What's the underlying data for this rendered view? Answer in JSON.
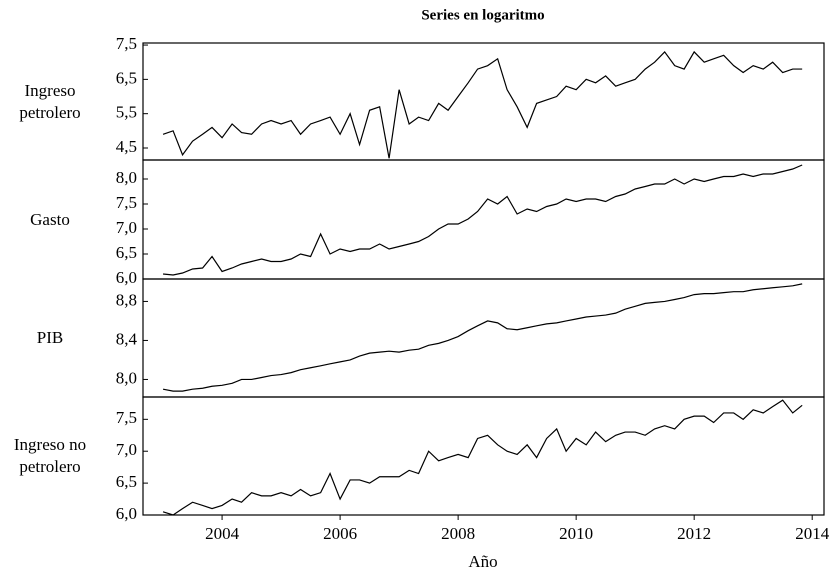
{
  "chart_data": [
    {
      "type": "line",
      "title": "Series en logaritmo",
      "ylabel": "Ingreso petrolero",
      "color": "#000000",
      "x": [
        2003,
        2003.17,
        2003.33,
        2003.5,
        2003.67,
        2003.83,
        2004,
        2004.17,
        2004.33,
        2004.5,
        2004.67,
        2004.83,
        2005,
        2005.17,
        2005.33,
        2005.5,
        2005.67,
        2005.83,
        2006,
        2006.17,
        2006.33,
        2006.5,
        2006.67,
        2006.83,
        2007,
        2007.17,
        2007.33,
        2007.5,
        2007.67,
        2007.83,
        2008,
        2008.17,
        2008.33,
        2008.5,
        2008.67,
        2008.83,
        2009,
        2009.17,
        2009.33,
        2009.5,
        2009.67,
        2009.83,
        2010,
        2010.17,
        2010.33,
        2010.5,
        2010.67,
        2010.83,
        2011,
        2011.17,
        2011.33,
        2011.5,
        2011.67,
        2011.83,
        2012,
        2012.17,
        2012.33,
        2012.5,
        2012.67,
        2012.83,
        2013,
        2013.17,
        2013.33,
        2013.5,
        2013.67,
        2013.83
      ],
      "values": [
        4.9,
        5.0,
        4.3,
        4.7,
        4.9,
        5.1,
        4.8,
        5.2,
        4.95,
        4.9,
        5.2,
        5.3,
        5.2,
        5.3,
        4.9,
        5.2,
        5.3,
        5.4,
        4.9,
        5.5,
        4.6,
        5.6,
        5.7,
        4.2,
        6.2,
        5.2,
        5.4,
        5.3,
        5.8,
        5.6,
        6.0,
        6.4,
        6.8,
        6.9,
        7.1,
        6.2,
        5.7,
        5.1,
        5.8,
        5.9,
        6.0,
        6.3,
        6.2,
        6.5,
        6.4,
        6.6,
        6.3,
        6.4,
        6.5,
        6.8,
        7.0,
        7.3,
        6.9,
        6.8,
        7.3,
        7.0,
        7.1,
        7.2,
        6.9,
        6.7,
        6.9,
        6.8,
        7.0,
        6.7,
        6.8,
        6.8
      ],
      "xlim": [
        2002.66,
        2014.2
      ],
      "ylim": [
        4.15,
        7.56
      ],
      "yticks": [
        {
          "value": 7.5,
          "label": "7,5"
        },
        {
          "value": 6.5,
          "label": "6,5"
        },
        {
          "value": 5.5,
          "label": "5,5"
        },
        {
          "value": 4.5,
          "label": "4,5"
        }
      ]
    },
    {
      "type": "line",
      "ylabel": "Gasto",
      "color": "#000000",
      "x": [
        2003,
        2003.17,
        2003.33,
        2003.5,
        2003.67,
        2003.83,
        2004,
        2004.17,
        2004.33,
        2004.5,
        2004.67,
        2004.83,
        2005,
        2005.17,
        2005.33,
        2005.5,
        2005.67,
        2005.83,
        2006,
        2006.17,
        2006.33,
        2006.5,
        2006.67,
        2006.83,
        2007,
        2007.17,
        2007.33,
        2007.5,
        2007.67,
        2007.83,
        2008,
        2008.17,
        2008.33,
        2008.5,
        2008.67,
        2008.83,
        2009,
        2009.17,
        2009.33,
        2009.5,
        2009.67,
        2009.83,
        2010,
        2010.17,
        2010.33,
        2010.5,
        2010.67,
        2010.83,
        2011,
        2011.17,
        2011.33,
        2011.5,
        2011.67,
        2011.83,
        2012,
        2012.17,
        2012.33,
        2012.5,
        2012.67,
        2012.83,
        2013,
        2013.17,
        2013.33,
        2013.5,
        2013.67,
        2013.83
      ],
      "values": [
        6.1,
        6.08,
        6.12,
        6.2,
        6.22,
        6.45,
        6.15,
        6.22,
        6.3,
        6.35,
        6.4,
        6.35,
        6.35,
        6.4,
        6.5,
        6.45,
        6.9,
        6.5,
        6.6,
        6.55,
        6.6,
        6.6,
        6.7,
        6.6,
        6.65,
        6.7,
        6.75,
        6.85,
        7.0,
        7.1,
        7.1,
        7.2,
        7.35,
        7.6,
        7.5,
        7.65,
        7.3,
        7.4,
        7.35,
        7.45,
        7.5,
        7.6,
        7.55,
        7.6,
        7.6,
        7.55,
        7.65,
        7.7,
        7.8,
        7.85,
        7.9,
        7.9,
        8.0,
        7.9,
        8.0,
        7.95,
        8.0,
        8.05,
        8.05,
        8.1,
        8.05,
        8.1,
        8.1,
        8.15,
        8.2,
        8.28
      ],
      "xlim": [
        2002.66,
        2014.2
      ],
      "ylim": [
        6.0,
        8.38
      ],
      "yticks": [
        {
          "value": 8.0,
          "label": "8,0"
        },
        {
          "value": 7.5,
          "label": "7,5"
        },
        {
          "value": 7.0,
          "label": "7,0"
        },
        {
          "value": 6.5,
          "label": "6,5"
        },
        {
          "value": 6.0,
          "label": "6,0"
        }
      ]
    },
    {
      "type": "line",
      "ylabel": "PIB",
      "color": "#000000",
      "x": [
        2003,
        2003.17,
        2003.33,
        2003.5,
        2003.67,
        2003.83,
        2004,
        2004.17,
        2004.33,
        2004.5,
        2004.67,
        2004.83,
        2005,
        2005.17,
        2005.33,
        2005.5,
        2005.67,
        2005.83,
        2006,
        2006.17,
        2006.33,
        2006.5,
        2006.67,
        2006.83,
        2007,
        2007.17,
        2007.33,
        2007.5,
        2007.67,
        2007.83,
        2008,
        2008.17,
        2008.33,
        2008.5,
        2008.67,
        2008.83,
        2009,
        2009.17,
        2009.33,
        2009.5,
        2009.67,
        2009.83,
        2010,
        2010.17,
        2010.33,
        2010.5,
        2010.67,
        2010.83,
        2011,
        2011.17,
        2011.33,
        2011.5,
        2011.67,
        2011.83,
        2012,
        2012.17,
        2012.33,
        2012.5,
        2012.67,
        2012.83,
        2013,
        2013.17,
        2013.33,
        2013.5,
        2013.67,
        2013.83
      ],
      "values": [
        7.9,
        7.88,
        7.88,
        7.9,
        7.91,
        7.93,
        7.94,
        7.96,
        8.0,
        8.0,
        8.02,
        8.04,
        8.05,
        8.07,
        8.1,
        8.12,
        8.14,
        8.16,
        8.18,
        8.2,
        8.24,
        8.27,
        8.28,
        8.29,
        8.28,
        8.3,
        8.31,
        8.35,
        8.37,
        8.4,
        8.44,
        8.5,
        8.55,
        8.6,
        8.58,
        8.52,
        8.51,
        8.53,
        8.55,
        8.57,
        8.58,
        8.6,
        8.62,
        8.64,
        8.65,
        8.66,
        8.68,
        8.72,
        8.75,
        8.78,
        8.79,
        8.8,
        8.82,
        8.84,
        8.87,
        8.88,
        8.88,
        8.89,
        8.9,
        8.9,
        8.92,
        8.93,
        8.94,
        8.95,
        8.96,
        8.98
      ],
      "xlim": [
        2002.66,
        2014.2
      ],
      "ylim": [
        7.82,
        9.03
      ],
      "yticks": [
        {
          "value": 8.8,
          "label": "8,8"
        },
        {
          "value": 8.4,
          "label": "8,4"
        },
        {
          "value": 8.0,
          "label": "8,0"
        }
      ]
    },
    {
      "type": "line",
      "ylabel": "Ingreso no petrolero",
      "xlabel": "Año",
      "color": "#000000",
      "x": [
        2003,
        2003.17,
        2003.33,
        2003.5,
        2003.67,
        2003.83,
        2004,
        2004.17,
        2004.33,
        2004.5,
        2004.67,
        2004.83,
        2005,
        2005.17,
        2005.33,
        2005.5,
        2005.67,
        2005.83,
        2006,
        2006.17,
        2006.33,
        2006.5,
        2006.67,
        2006.83,
        2007,
        2007.17,
        2007.33,
        2007.5,
        2007.67,
        2007.83,
        2008,
        2008.17,
        2008.33,
        2008.5,
        2008.67,
        2008.83,
        2009,
        2009.17,
        2009.33,
        2009.5,
        2009.67,
        2009.83,
        2010,
        2010.17,
        2010.33,
        2010.5,
        2010.67,
        2010.83,
        2011,
        2011.17,
        2011.33,
        2011.5,
        2011.67,
        2011.83,
        2012,
        2012.17,
        2012.33,
        2012.5,
        2012.67,
        2012.83,
        2013,
        2013.17,
        2013.33,
        2013.5,
        2013.67,
        2013.83
      ],
      "values": [
        6.05,
        6.0,
        6.1,
        6.2,
        6.15,
        6.1,
        6.15,
        6.25,
        6.2,
        6.35,
        6.3,
        6.3,
        6.35,
        6.3,
        6.4,
        6.3,
        6.35,
        6.65,
        6.25,
        6.55,
        6.55,
        6.5,
        6.6,
        6.6,
        6.6,
        6.7,
        6.65,
        7.0,
        6.85,
        6.9,
        6.95,
        6.9,
        7.2,
        7.25,
        7.1,
        7.0,
        6.95,
        7.1,
        6.9,
        7.2,
        7.35,
        7.0,
        7.2,
        7.1,
        7.3,
        7.15,
        7.25,
        7.3,
        7.3,
        7.25,
        7.35,
        7.4,
        7.35,
        7.5,
        7.55,
        7.55,
        7.45,
        7.6,
        7.6,
        7.5,
        7.65,
        7.6,
        7.7,
        7.8,
        7.6,
        7.72
      ],
      "xlim": [
        2002.66,
        2014.2
      ],
      "ylim": [
        6.0,
        7.85
      ],
      "yticks": [
        {
          "value": 7.5,
          "label": "7,5"
        },
        {
          "value": 7.0,
          "label": "7,0"
        },
        {
          "value": 6.5,
          "label": "6,5"
        },
        {
          "value": 6.0,
          "label": "6,0"
        }
      ],
      "xticks": [
        2004,
        2006,
        2008,
        2010,
        2012,
        2014
      ]
    }
  ]
}
